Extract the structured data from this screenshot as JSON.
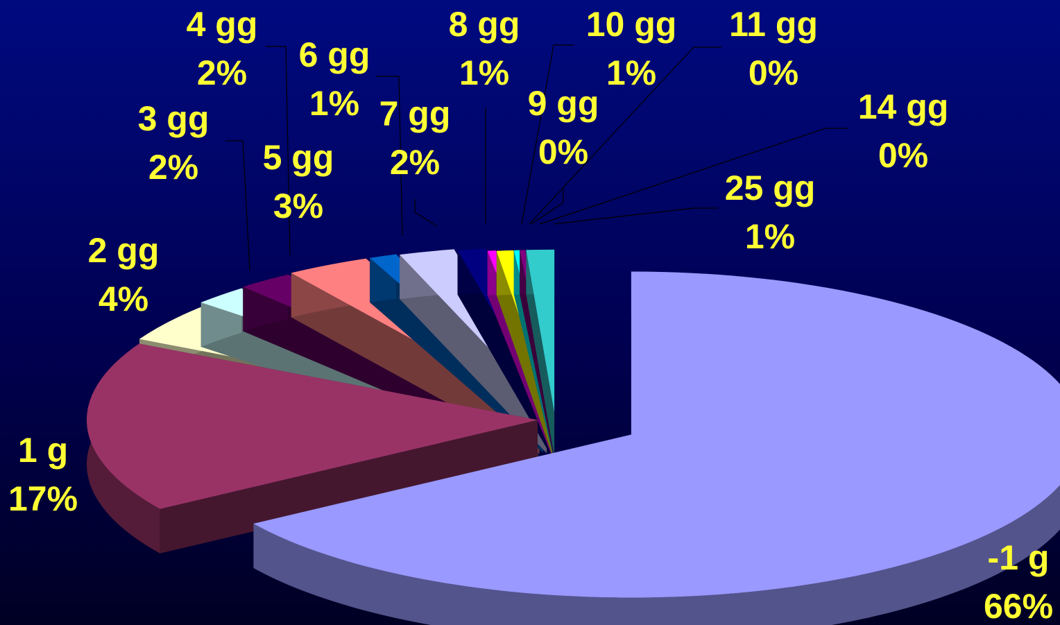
{
  "chart_data": {
    "type": "pie",
    "style": "3d-exploded",
    "label_color": "#ffff33",
    "background": [
      "#000a80",
      "#000024"
    ],
    "slices": [
      {
        "label": "-1 g",
        "percent_label": "66%",
        "value": 66,
        "color": "#9999ff"
      },
      {
        "label": "1 g",
        "percent_label": "17%",
        "value": 17,
        "color": "#993366"
      },
      {
        "label": "2 gg",
        "percent_label": "4%",
        "value": 4,
        "color": "#ffffcc"
      },
      {
        "label": "3 gg",
        "percent_label": "2%",
        "value": 2,
        "color": "#ccffff"
      },
      {
        "label": "4 gg",
        "percent_label": "2%",
        "value": 2,
        "color": "#660066"
      },
      {
        "label": "5 gg",
        "percent_label": "3%",
        "value": 3,
        "color": "#ff8080"
      },
      {
        "label": "6 gg",
        "percent_label": "1%",
        "value": 1,
        "color": "#0066cc"
      },
      {
        "label": "7 gg",
        "percent_label": "2%",
        "value": 2,
        "color": "#ccccff"
      },
      {
        "label": "8 gg",
        "percent_label": "1%",
        "value": 1,
        "color": "#000080"
      },
      {
        "label": "9 gg",
        "percent_label": "0%",
        "value": 0.3,
        "color": "#ff00ff"
      },
      {
        "label": "10 gg",
        "percent_label": "1%",
        "value": 0.6,
        "color": "#ffff00"
      },
      {
        "label": "11 gg",
        "percent_label": "0%",
        "value": 0.2,
        "color": "#00ffff"
      },
      {
        "label": "14 gg",
        "percent_label": "0%",
        "value": 0.2,
        "color": "#800080"
      },
      {
        "label": "25 gg",
        "percent_label": "1%",
        "value": 1,
        "color": "#33cccc"
      }
    ]
  }
}
